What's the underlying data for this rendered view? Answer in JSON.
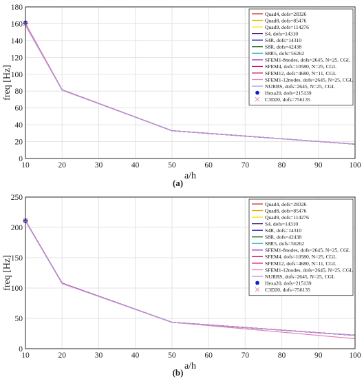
{
  "legend_entries": [
    {
      "label": "Quad4, dofs=28326",
      "color": "#d62728",
      "marker": "line"
    },
    {
      "label": "Quad8, dofs=85476",
      "color": "#f0a500",
      "marker": "line"
    },
    {
      "label": "Quad9, dofs=114276",
      "color": "#f2e600",
      "marker": "line"
    },
    {
      "label": "S4, dofs=14310",
      "color": "#3a1f6e",
      "marker": "line"
    },
    {
      "label": "S4R, dofs=14310",
      "color": "#1f1fd6",
      "marker": "line"
    },
    {
      "label": "S8R, dofs=42438",
      "color": "#1b6e2e",
      "marker": "line"
    },
    {
      "label": "S8R5, dofs=56262",
      "color": "#36b3c9",
      "marker": "line"
    },
    {
      "label": "SFEM1-8nodes, dofs=2645, N=25, CGL",
      "color": "#9b30d9",
      "marker": "line"
    },
    {
      "label": "SFEM4, dofs=10580, N=25, CGL",
      "color": "#c2187a",
      "marker": "line"
    },
    {
      "label": "SFEM12, dofs=4680, N=11, CGL",
      "color": "#d81b60",
      "marker": "line"
    },
    {
      "label": "SFEM1-12nodes, dofs=2645, N=25, CGL",
      "color": "#e07fb8",
      "marker": "line"
    },
    {
      "label": "NURBS, dofs=2645, N=25, CGL",
      "color": "#b39ddb",
      "marker": "line"
    },
    {
      "label": "Hexa20, dofs=215139",
      "color": "#0a1fcc",
      "marker": "dot"
    },
    {
      "label": "C3D20, dofs=756135",
      "color": "#e89090",
      "marker": "cross"
    }
  ],
  "chart_data": [
    {
      "type": "line",
      "caption": "(a)",
      "xlabel": "a/h",
      "ylabel": "freq [Hz]",
      "xlim": [
        10,
        100
      ],
      "ylim": [
        0,
        180
      ],
      "xticks": [
        10,
        20,
        30,
        40,
        50,
        60,
        70,
        80,
        90,
        100
      ],
      "yticks": [
        0,
        20,
        40,
        60,
        80,
        100,
        120,
        140,
        160,
        180
      ],
      "grid": true,
      "legend_position": "top-right",
      "x": [
        10,
        20,
        50,
        100
      ],
      "series": [
        {
          "name": "Quad4, dofs=28326",
          "values": [
            160.0,
            81.5,
            33.0,
            17.0
          ]
        },
        {
          "name": "Quad8, dofs=85476",
          "values": [
            160.0,
            81.5,
            33.0,
            17.0
          ]
        },
        {
          "name": "Quad9, dofs=114276",
          "values": [
            160.0,
            81.5,
            33.0,
            17.0
          ]
        },
        {
          "name": "S4, dofs=14310",
          "values": [
            160.0,
            81.5,
            33.0,
            17.0
          ]
        },
        {
          "name": "S4R, dofs=14310",
          "values": [
            160.0,
            81.5,
            33.0,
            17.0
          ]
        },
        {
          "name": "S8R, dofs=42438",
          "values": [
            160.0,
            81.5,
            33.0,
            17.0
          ]
        },
        {
          "name": "S8R5, dofs=56262",
          "values": [
            160.0,
            81.5,
            33.0,
            17.0
          ]
        },
        {
          "name": "SFEM1-8nodes, dofs=2645, N=25, CGL",
          "values": [
            160.0,
            81.5,
            33.0,
            17.0
          ]
        },
        {
          "name": "SFEM4, dofs=10580, N=25, CGL",
          "values": [
            160.0,
            81.5,
            33.0,
            17.0
          ]
        },
        {
          "name": "SFEM12, dofs=4680, N=11, CGL",
          "values": [
            160.0,
            81.5,
            33.0,
            17.0
          ]
        },
        {
          "name": "SFEM1-12nodes, dofs=2645, N=25, CGL",
          "values": [
            160.0,
            81.5,
            33.0,
            17.0
          ]
        },
        {
          "name": "NURBS, dofs=2645, N=25, CGL",
          "values": [
            158.0,
            81.0,
            33.0,
            17.0
          ]
        }
      ],
      "reference_points": [
        {
          "name": "Hexa20, dofs=215139",
          "x": 10,
          "y": 161.0
        },
        {
          "name": "C3D20, dofs=756135",
          "x": 10,
          "y": 160.0
        }
      ]
    },
    {
      "type": "line",
      "caption": "(b)",
      "xlabel": "a/h",
      "ylabel": "freq [Hz]",
      "xlim": [
        10,
        100
      ],
      "ylim": [
        0,
        250
      ],
      "xticks": [
        10,
        20,
        30,
        40,
        50,
        60,
        70,
        80,
        90,
        100
      ],
      "yticks": [
        0,
        50,
        100,
        150,
        200,
        250
      ],
      "grid": true,
      "legend_position": "top-right",
      "x": [
        10,
        20,
        50,
        100
      ],
      "series": [
        {
          "name": "Quad4, dofs=28326",
          "values": [
            211.0,
            108.0,
            43.5,
            22.0
          ]
        },
        {
          "name": "Quad8, dofs=85476",
          "values": [
            211.0,
            108.0,
            43.5,
            22.0
          ]
        },
        {
          "name": "Quad9, dofs=114276",
          "values": [
            211.0,
            108.0,
            43.5,
            22.0
          ]
        },
        {
          "name": "S4, dofs=14310",
          "values": [
            211.0,
            108.0,
            43.5,
            22.0
          ]
        },
        {
          "name": "S4R, dofs=14310",
          "values": [
            211.0,
            108.0,
            43.5,
            22.0
          ]
        },
        {
          "name": "S8R, dofs=42438",
          "values": [
            211.0,
            108.0,
            43.5,
            22.0
          ]
        },
        {
          "name": "S8R5, dofs=56262",
          "values": [
            211.0,
            108.0,
            43.5,
            22.0
          ]
        },
        {
          "name": "SFEM1-8nodes, dofs=2645, N=25, CGL",
          "values": [
            211.0,
            108.0,
            43.5,
            22.0
          ]
        },
        {
          "name": "SFEM4, dofs=10580, N=25, CGL",
          "values": [
            211.0,
            108.0,
            43.5,
            22.0
          ]
        },
        {
          "name": "SFEM12, dofs=4680, N=11, CGL",
          "values": [
            211.0,
            108.0,
            43.5,
            22.0
          ]
        },
        {
          "name": "SFEM1-12nodes, dofs=2645, N=25, CGL",
          "values": [
            211.0,
            107.5,
            43.5,
            16.5
          ]
        },
        {
          "name": "NURBS, dofs=2645, N=25, CGL",
          "values": [
            210.0,
            107.5,
            43.5,
            22.0
          ]
        }
      ],
      "reference_points": [
        {
          "name": "Hexa20, dofs=215139",
          "x": 10,
          "y": 211.0
        },
        {
          "name": "C3D20, dofs=756135",
          "x": 10,
          "y": 211.0
        }
      ]
    }
  ]
}
